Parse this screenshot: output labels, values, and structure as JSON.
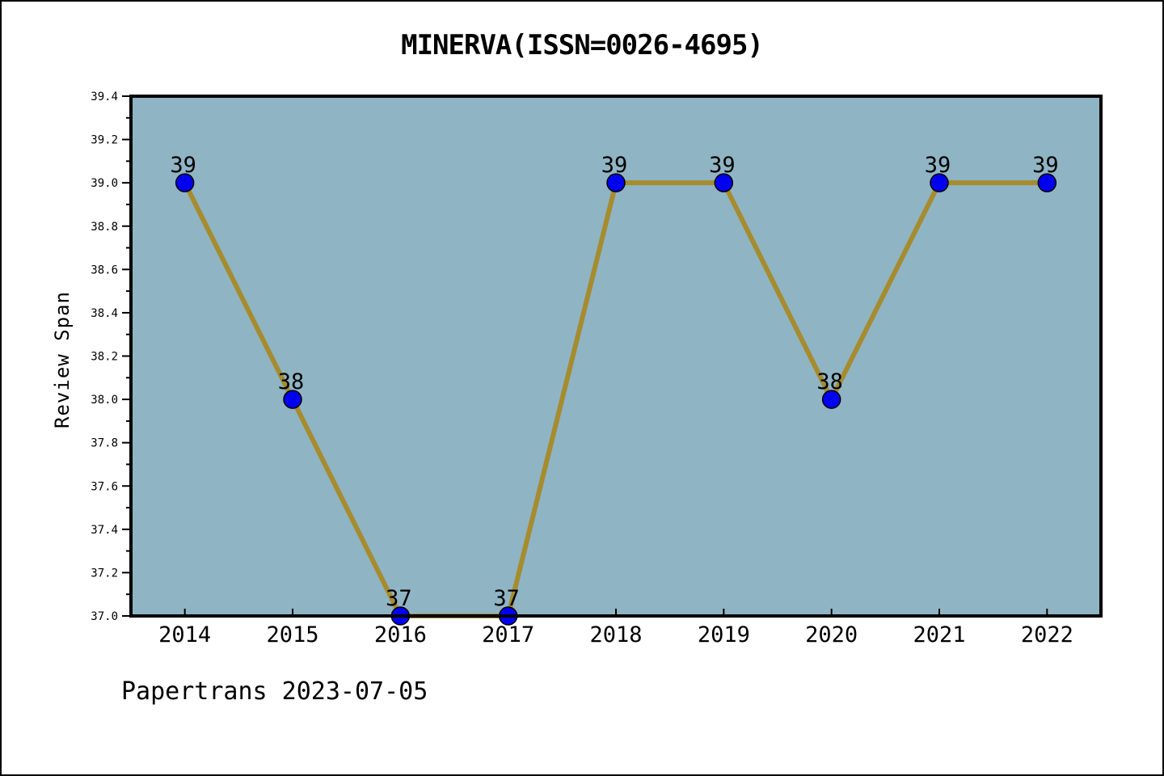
{
  "footer": {
    "text": "Papertrans 2023-07-05"
  },
  "chart_data": {
    "type": "line",
    "title": "MINERVA(ISSN=0026-4695)",
    "xlabel": "",
    "ylabel": "Review Span",
    "categories": [
      "2014",
      "2015",
      "2016",
      "2017",
      "2018",
      "2019",
      "2020",
      "2021",
      "2022"
    ],
    "values": [
      39,
      38,
      37,
      37,
      39,
      39,
      38,
      39,
      39
    ],
    "point_labels": [
      "39",
      "38",
      "37",
      "37",
      "39",
      "39",
      "38",
      "39",
      "39"
    ],
    "ylim": [
      37.0,
      39.4
    ],
    "y_major_step": 0.2,
    "y_minor_step": 0.1,
    "grid": false,
    "legend": "none",
    "colors": {
      "plot_background": "#8FB4C4",
      "line": "#A68C2E",
      "marker_fill": "#0000F0",
      "marker_edge": "#000000",
      "frame": "#000000",
      "text": "#000000"
    }
  }
}
